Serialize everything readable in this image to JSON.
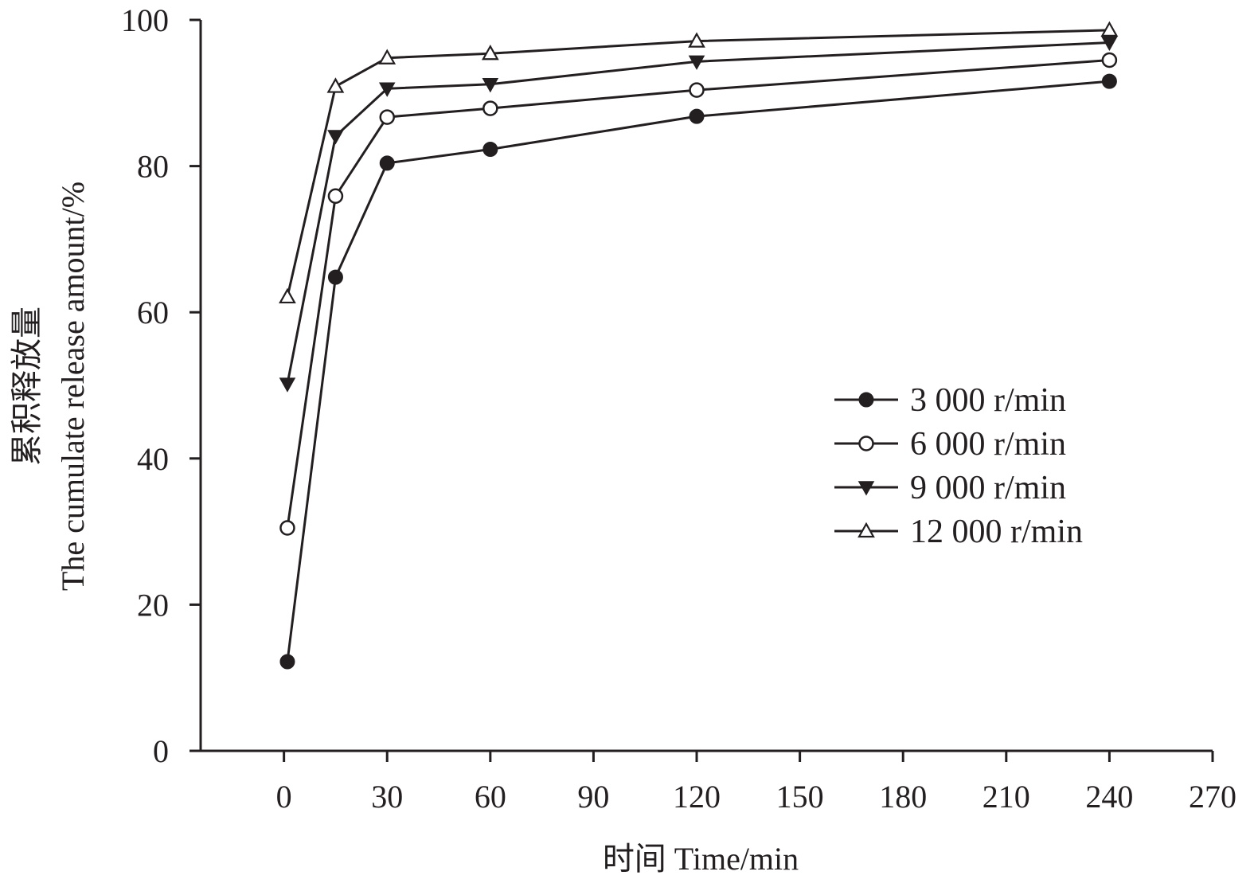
{
  "chart_data": {
    "type": "line",
    "xlabel": "时间 Time/min",
    "ylabel_line1": "累积释放量",
    "ylabel_line2": "The cumulate release amount/%",
    "xlim": [
      -27,
      270
    ],
    "ylim": [
      0,
      100
    ],
    "x_ticks": [
      0,
      30,
      60,
      90,
      120,
      150,
      180,
      210,
      240,
      270
    ],
    "y_ticks": [
      0,
      20,
      40,
      60,
      80,
      100
    ],
    "grid": false,
    "legend_position": "center-right",
    "x": [
      1,
      15,
      30,
      60,
      120,
      240
    ],
    "series": [
      {
        "name": "3 000 r/min",
        "marker": "filled-circle",
        "values": [
          12.2,
          64.8,
          80.4,
          82.3,
          86.8,
          91.6
        ]
      },
      {
        "name": "6 000 r/min",
        "marker": "open-circle",
        "values": [
          30.5,
          75.9,
          86.7,
          87.9,
          90.4,
          94.5
        ]
      },
      {
        "name": "9 000 r/min",
        "marker": "filled-triangle-down",
        "values": [
          50.2,
          84.1,
          90.6,
          91.2,
          94.3,
          96.9
        ]
      },
      {
        "name": "12 000 r/min",
        "marker": "open-triangle-up",
        "values": [
          62.1,
          90.9,
          94.8,
          95.4,
          97.1,
          98.6
        ]
      }
    ]
  },
  "colors": {
    "ink": "#231f20",
    "background": "#ffffff"
  }
}
